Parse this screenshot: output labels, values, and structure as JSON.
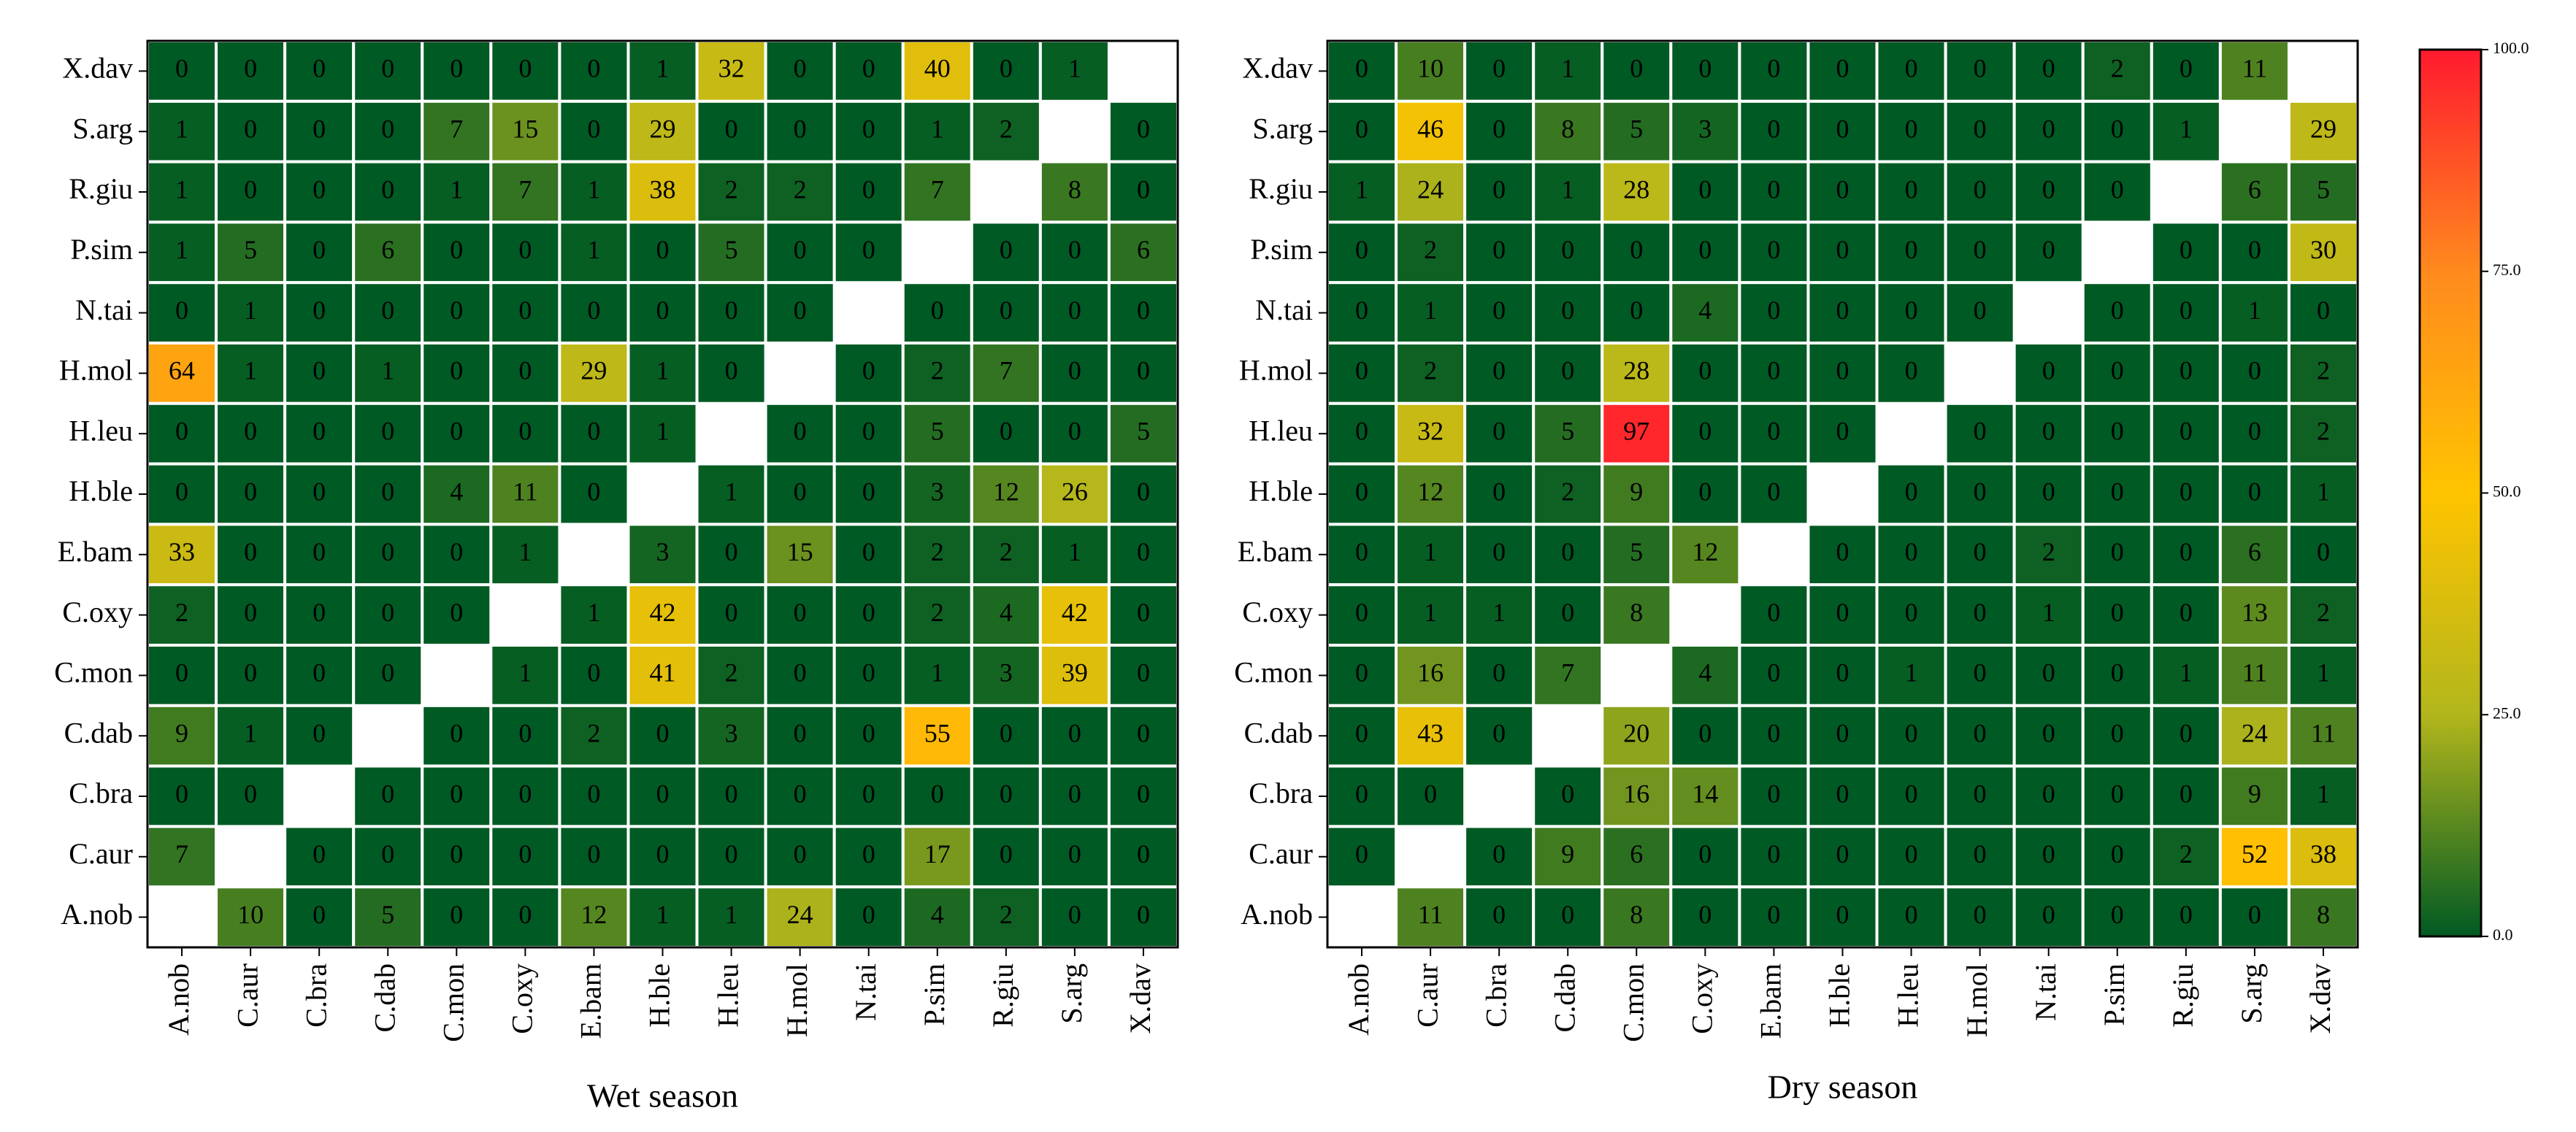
{
  "chart_data": [
    {
      "type": "heatmap",
      "xlabel": "Wet season",
      "x": [
        "A.nob",
        "C.aur",
        "C.bra",
        "C.dab",
        "C.mon",
        "C.oxy",
        "E.bam",
        "H.ble",
        "H.leu",
        "H.mol",
        "N.tai",
        "P.sim",
        "R.giu",
        "S.arg",
        "X.dav"
      ],
      "y": [
        "X.dav",
        "S.arg",
        "R.giu",
        "P.sim",
        "N.tai",
        "H.mol",
        "H.leu",
        "H.ble",
        "E.bam",
        "C.oxy",
        "C.mon",
        "C.dab",
        "C.bra",
        "C.aur",
        "A.nob"
      ],
      "values": [
        [
          0,
          0,
          0,
          0,
          0,
          0,
          0,
          1,
          32,
          0,
          0,
          40,
          0,
          1,
          null
        ],
        [
          1,
          0,
          0,
          0,
          7,
          15,
          0,
          29,
          0,
          0,
          0,
          1,
          2,
          null,
          0
        ],
        [
          1,
          0,
          0,
          0,
          1,
          7,
          1,
          38,
          2,
          2,
          0,
          7,
          null,
          8,
          0
        ],
        [
          1,
          5,
          0,
          6,
          0,
          0,
          1,
          0,
          5,
          0,
          0,
          null,
          0,
          0,
          6
        ],
        [
          0,
          1,
          0,
          0,
          0,
          0,
          0,
          0,
          0,
          0,
          null,
          0,
          0,
          0,
          0
        ],
        [
          64,
          1,
          0,
          1,
          0,
          0,
          29,
          1,
          0,
          null,
          0,
          2,
          7,
          0,
          0
        ],
        [
          0,
          0,
          0,
          0,
          0,
          0,
          0,
          1,
          null,
          0,
          0,
          5,
          0,
          0,
          5
        ],
        [
          0,
          0,
          0,
          0,
          4,
          11,
          0,
          null,
          1,
          0,
          0,
          3,
          12,
          26,
          0
        ],
        [
          33,
          0,
          0,
          0,
          0,
          1,
          null,
          3,
          0,
          15,
          0,
          2,
          2,
          1,
          0
        ],
        [
          2,
          0,
          0,
          0,
          0,
          null,
          1,
          42,
          0,
          0,
          0,
          2,
          4,
          42,
          0
        ],
        [
          0,
          0,
          0,
          0,
          null,
          1,
          0,
          41,
          2,
          0,
          0,
          1,
          3,
          39,
          0
        ],
        [
          9,
          1,
          0,
          null,
          0,
          0,
          2,
          0,
          3,
          0,
          0,
          55,
          0,
          0,
          0
        ],
        [
          0,
          0,
          null,
          0,
          0,
          0,
          0,
          0,
          0,
          0,
          0,
          0,
          0,
          0,
          0
        ],
        [
          7,
          null,
          0,
          0,
          0,
          0,
          0,
          0,
          0,
          0,
          0,
          17,
          0,
          0,
          0
        ],
        [
          null,
          10,
          0,
          5,
          0,
          0,
          12,
          1,
          1,
          24,
          0,
          4,
          2,
          0,
          0
        ]
      ]
    },
    {
      "type": "heatmap",
      "xlabel": "Dry season",
      "x": [
        "A.nob",
        "C.aur",
        "C.bra",
        "C.dab",
        "C.mon",
        "C.oxy",
        "E.bam",
        "H.ble",
        "H.leu",
        "H.mol",
        "N.tai",
        "P.sim",
        "R.giu",
        "S.arg",
        "X.dav"
      ],
      "y": [
        "X.dav",
        "S.arg",
        "R.giu",
        "P.sim",
        "N.tai",
        "H.mol",
        "H.leu",
        "H.ble",
        "E.bam",
        "C.oxy",
        "C.mon",
        "C.dab",
        "C.bra",
        "C.aur",
        "A.nob"
      ],
      "values": [
        [
          0,
          10,
          0,
          1,
          0,
          0,
          0,
          0,
          0,
          0,
          0,
          2,
          0,
          11,
          null
        ],
        [
          0,
          46,
          0,
          8,
          5,
          3,
          0,
          0,
          0,
          0,
          0,
          0,
          1,
          null,
          29
        ],
        [
          1,
          24,
          0,
          1,
          28,
          0,
          0,
          0,
          0,
          0,
          0,
          0,
          null,
          6,
          5
        ],
        [
          0,
          2,
          0,
          0,
          0,
          0,
          0,
          0,
          0,
          0,
          0,
          null,
          0,
          0,
          30
        ],
        [
          0,
          1,
          0,
          0,
          0,
          4,
          0,
          0,
          0,
          0,
          null,
          0,
          0,
          1,
          0
        ],
        [
          0,
          2,
          0,
          0,
          28,
          0,
          0,
          0,
          0,
          null,
          0,
          0,
          0,
          0,
          2
        ],
        [
          0,
          32,
          0,
          5,
          97,
          0,
          0,
          0,
          null,
          0,
          0,
          0,
          0,
          0,
          2
        ],
        [
          0,
          12,
          0,
          2,
          9,
          0,
          0,
          null,
          0,
          0,
          0,
          0,
          0,
          0,
          1
        ],
        [
          0,
          1,
          0,
          0,
          5,
          12,
          null,
          0,
          0,
          0,
          2,
          0,
          0,
          6,
          0
        ],
        [
          0,
          1,
          1,
          0,
          8,
          null,
          0,
          0,
          0,
          0,
          1,
          0,
          0,
          13,
          2
        ],
        [
          0,
          16,
          0,
          7,
          null,
          4,
          0,
          0,
          1,
          0,
          0,
          0,
          1,
          11,
          1
        ],
        [
          0,
          43,
          0,
          null,
          20,
          0,
          0,
          0,
          0,
          0,
          0,
          0,
          0,
          24,
          11
        ],
        [
          0,
          0,
          null,
          0,
          16,
          14,
          0,
          0,
          0,
          0,
          0,
          0,
          0,
          9,
          1
        ],
        [
          0,
          null,
          0,
          9,
          6,
          0,
          0,
          0,
          0,
          0,
          0,
          0,
          2,
          52,
          38
        ],
        [
          null,
          11,
          0,
          0,
          8,
          0,
          0,
          0,
          0,
          0,
          0,
          0,
          0,
          0,
          8
        ]
      ]
    }
  ],
  "colorbar": {
    "clim": [
      0,
      100
    ],
    "ticks": [
      {
        "value": 0,
        "label": "0.0"
      },
      {
        "value": 25,
        "label": "25.0"
      },
      {
        "value": 50,
        "label": "50.0"
      },
      {
        "value": 75,
        "label": "75.0"
      },
      {
        "value": 100,
        "label": "100.0"
      }
    ],
    "colors": [
      "#005a23",
      "#b2b61c",
      "#ffc400",
      "#ff8a1e",
      "#ff1a2e"
    ]
  }
}
